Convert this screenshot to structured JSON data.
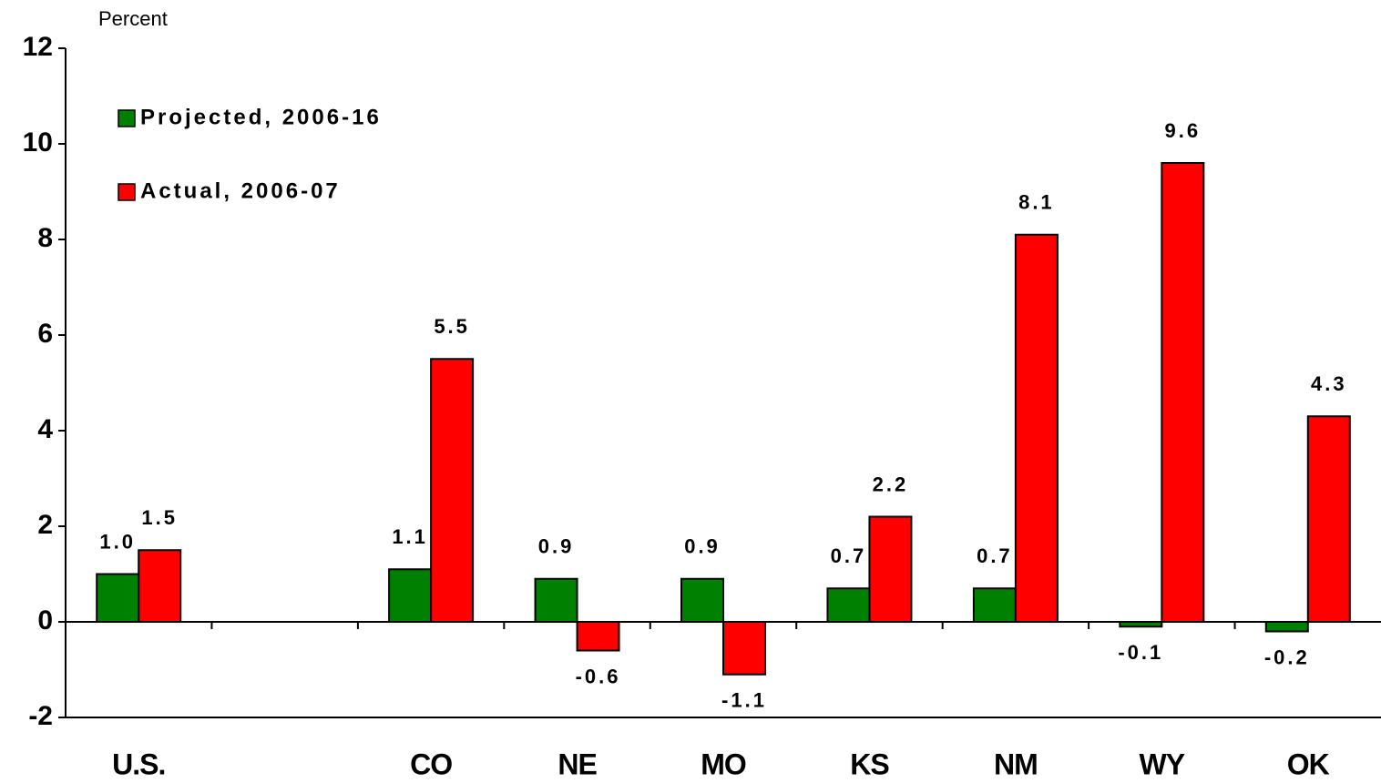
{
  "chart_data": {
    "type": "bar",
    "y_label": "Percent",
    "categories": [
      "U.S.",
      null,
      "CO",
      "NE",
      "MO",
      "KS",
      "NM",
      "WY",
      "OK"
    ],
    "series": [
      {
        "name": "Projected, 2006-16",
        "color": "#008000",
        "values": [
          1.0,
          null,
          1.1,
          0.9,
          0.9,
          0.7,
          0.7,
          -0.1,
          -0.2
        ],
        "value_labels": [
          "1.0",
          null,
          "1.1",
          "0.9",
          "0.9",
          "0.7",
          "0.7",
          "-0.1",
          "-0.2"
        ]
      },
      {
        "name": "Actual, 2006-07",
        "color": "#ff0000",
        "values": [
          1.5,
          null,
          5.5,
          -0.6,
          -1.1,
          2.2,
          8.1,
          9.6,
          4.3
        ],
        "value_labels": [
          "1.5",
          null,
          "5.5",
          "-0.6",
          "-1.1",
          "2.2",
          "8.1",
          "9.6",
          "4.3"
        ]
      }
    ],
    "ylim": [
      -2,
      12
    ],
    "yticks": [
      -2,
      0,
      2,
      4,
      6,
      8,
      10,
      12
    ],
    "grid": false,
    "legend": "upper-left"
  }
}
